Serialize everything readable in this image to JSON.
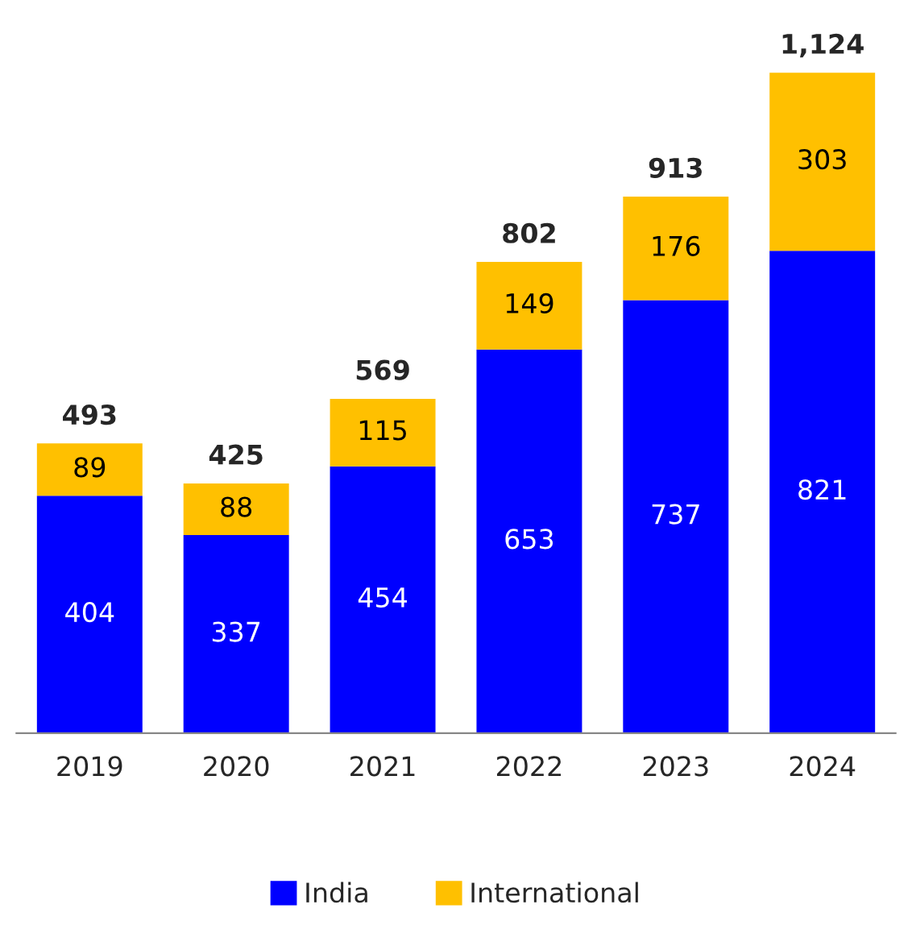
{
  "chart_data": {
    "type": "bar",
    "stacked": true,
    "categories": [
      "2019",
      "2020",
      "2021",
      "2022",
      "2023",
      "2024"
    ],
    "series": [
      {
        "name": "India",
        "color": "#0000ff",
        "values": [
          404,
          337,
          454,
          653,
          737,
          821
        ]
      },
      {
        "name": "International",
        "color": "#ffc000",
        "values": [
          89,
          88,
          115,
          149,
          176,
          303
        ]
      }
    ],
    "data_labels": true,
    "totals": [
      "493",
      "425",
      "569",
      "802",
      "913",
      "1,124"
    ],
    "legend": "bottom",
    "grid": false
  }
}
